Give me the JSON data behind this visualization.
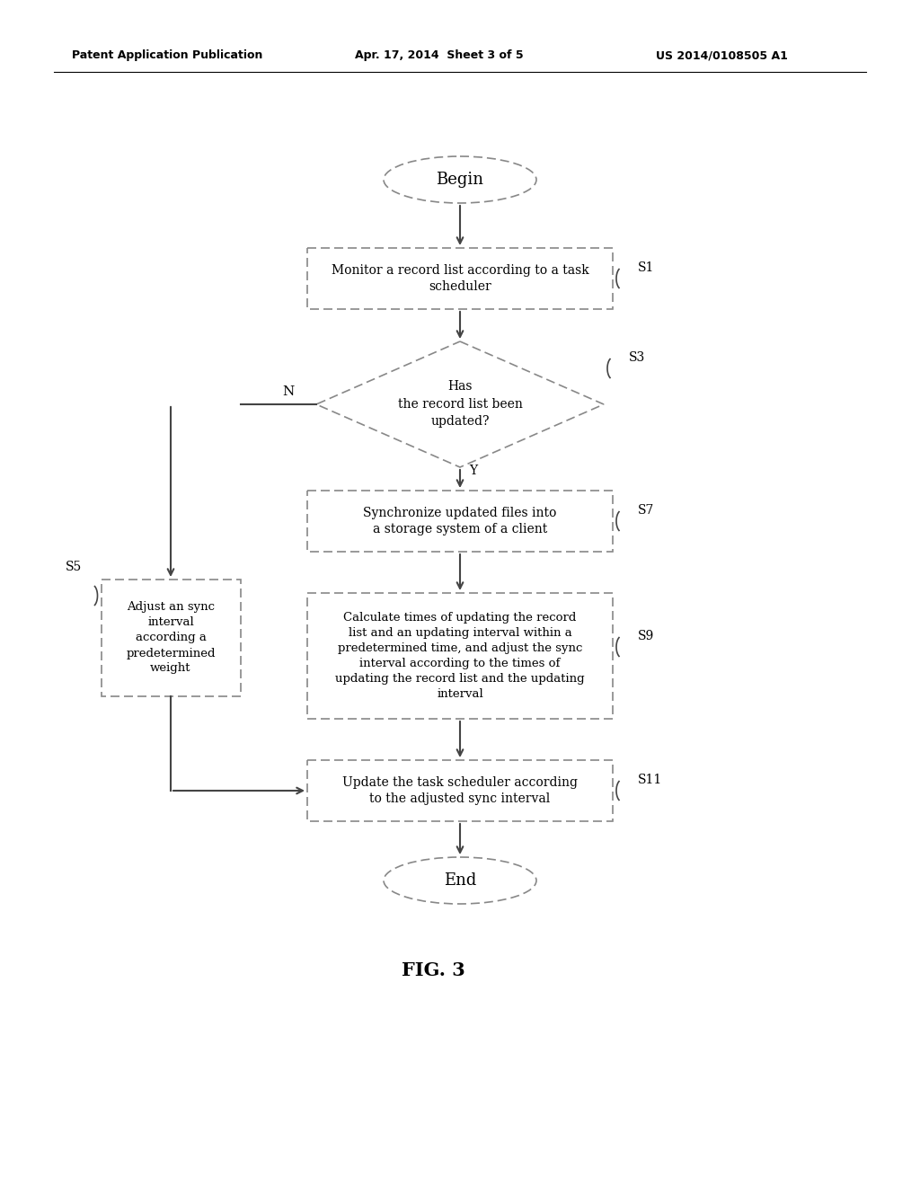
{
  "bg_color": "#ffffff",
  "line_color": "#444444",
  "dash_color": "#888888",
  "text_color": "#000000",
  "header_left": "Patent Application Publication",
  "header_mid": "Apr. 17, 2014  Sheet 3 of 5",
  "header_right": "US 2014/0108505 A1",
  "fig_label": "FIG. 3",
  "begin_label": "Begin",
  "end_label": "End",
  "s1_label": "Monitor a record list according to a task\nscheduler",
  "s3_label": "Has\nthe record list been\nupdated?",
  "s5_label": "Adjust an sync\ninterval\naccording a\npredetermined\nweight",
  "s7_label": "Synchronize updated files into\na storage system of a client",
  "s9_label": "Calculate times of updating the record\nlist and an updating interval within a\npredetermined time, and adjust the sync\ninterval according to the times of\nupdating the record list and the updating\ninterval",
  "s11_label": "Update the task scheduler according\nto the adjusted sync interval",
  "tag_s1": "S1",
  "tag_s3": "S3",
  "tag_s5": "S5",
  "tag_s7": "S7",
  "tag_s9": "S9",
  "tag_s11": "S11",
  "label_Y": "Y",
  "label_N": "N"
}
